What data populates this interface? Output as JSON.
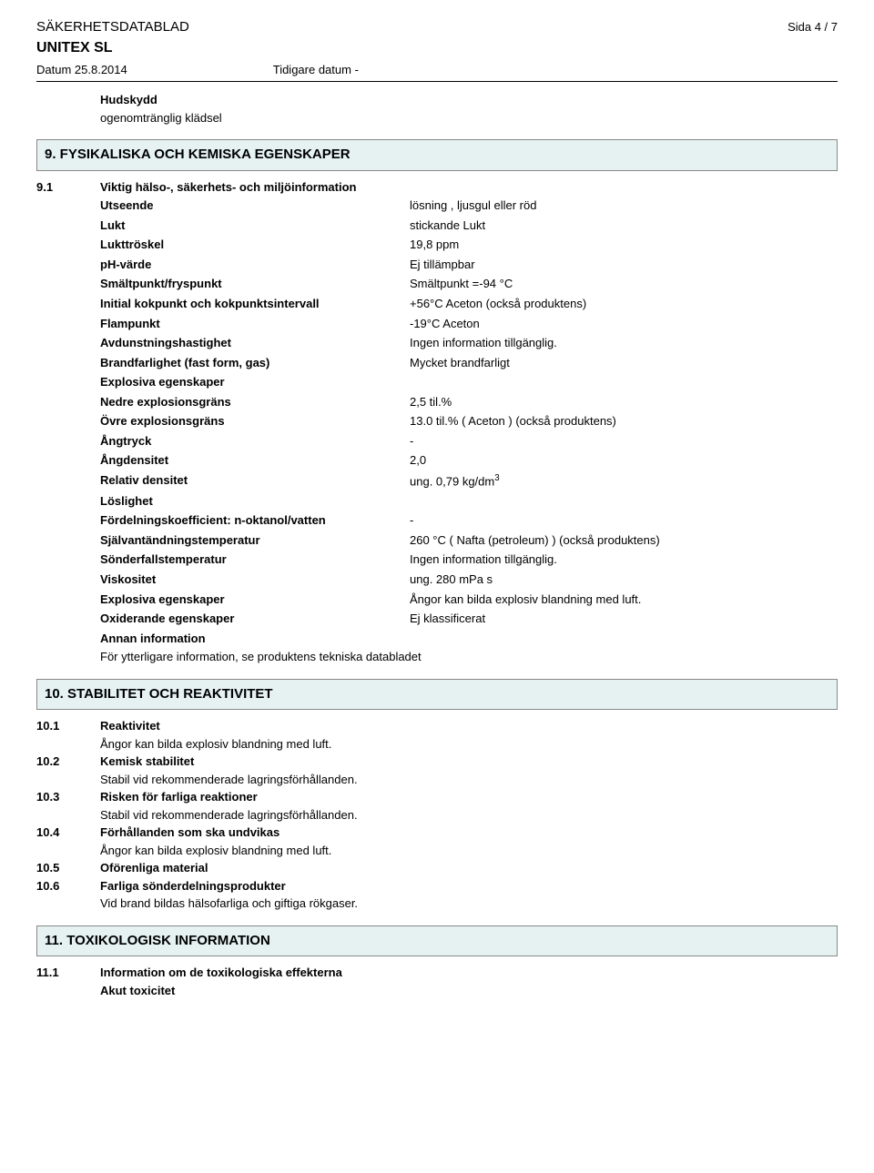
{
  "header": {
    "doc_type": "SÄKERHETSDATABLAD",
    "page_label": "Sida  4 / 7",
    "product": "UNITEX SL",
    "date_label": "Datum 25.8.2014",
    "prev_date_label": "Tidigare datum -"
  },
  "intro": {
    "h1": "Hudskydd",
    "l1": "ogenomtränglig klädsel"
  },
  "section9": {
    "title": "9. FYSIKALISKA OCH KEMISKA EGENSKAPER",
    "sub_num": "9.1",
    "sub_title": "Viktig hälso-, säkerhets- och miljöinformation",
    "props": [
      {
        "k": "Utseende",
        "v": "lösning , ljusgul eller röd"
      },
      {
        "k": "Lukt",
        "v": "stickande  Lukt"
      },
      {
        "k": "Lukttröskel",
        "v": "19,8 ppm"
      },
      {
        "k": "pH-värde",
        "v": "Ej tillämpbar"
      },
      {
        "k": "Smältpunkt/fryspunkt",
        "v": "Smältpunkt    =-94 °C"
      },
      {
        "k": "Initial kokpunkt och kokpunktsintervall",
        "v": "+56°C  Aceton    (också produktens)"
      },
      {
        "k": "Flampunkt",
        "v": "-19°C Aceton"
      },
      {
        "k": "Avdunstningshastighet",
        "v": "Ingen information tillgänglig."
      },
      {
        "k": "Brandfarlighet (fast form, gas)",
        "v": "Mycket brandfarligt"
      }
    ],
    "explosiva_hdr": "Explosiva egenskaper",
    "props2": [
      {
        "k": "Nedre explosionsgräns",
        "v": "2,5 til.%"
      },
      {
        "k": "Övre explosionsgräns",
        "v": "13.0 til.% ( Aceton ) (också produktens)"
      },
      {
        "k": "Ångtryck",
        "v": "-"
      },
      {
        "k": "Ångdensitet",
        "v": "2,0"
      }
    ],
    "rel_dens_k": "Relativ densitet",
    "rel_dens_v_pre": "ung. 0,79 kg/dm",
    "rel_dens_sup": "3",
    "loslighet_hdr": "Löslighet",
    "props3": [
      {
        "k": "Fördelningskoefficient: n-oktanol/vatten",
        "v": "-"
      },
      {
        "k": "Självantändningstemperatur",
        "v": "260 °C ( Nafta (petroleum) ) (också produktens)"
      },
      {
        "k": "Sönderfallstemperatur",
        "v": "Ingen information tillgänglig."
      },
      {
        "k": "Viskositet",
        "v": "ung.  280  mPa s"
      },
      {
        "k": "Explosiva egenskaper",
        "v": "Ångor kan bilda explosiv blandning med luft."
      },
      {
        "k": "Oxiderande egenskaper",
        "v": "Ej klassificerat"
      }
    ],
    "annan_hdr": "Annan information",
    "annan_text": "För ytterligare information, se produktens tekniska databladet"
  },
  "section10": {
    "title": "10. STABILITET OCH REAKTIVITET",
    "items": [
      {
        "n": "10.1",
        "h": "Reaktivitet",
        "t": "Ångor kan bilda explosiv blandning med luft."
      },
      {
        "n": "10.2",
        "h": "Kemisk stabilitet",
        "t": "Stabil vid rekommenderade lagringsförhållanden."
      },
      {
        "n": "10.3",
        "h": "Risken för farliga reaktioner",
        "t": "Stabil vid rekommenderade lagringsförhållanden."
      },
      {
        "n": "10.4",
        "h": "Förhållanden som ska undvikas",
        "t": "Ångor kan bilda explosiv blandning med luft."
      },
      {
        "n": "10.5",
        "h": "Oförenliga material",
        "t": ""
      },
      {
        "n": "10.6",
        "h": "Farliga sönderdelningsprodukter",
        "t": "Vid brand bildas hälsofarliga och giftiga rökgaser."
      }
    ]
  },
  "section11": {
    "title": "11. TOXIKOLOGISK INFORMATION",
    "n": "11.1",
    "h": "Information om de toxikologiska effekterna",
    "sub": "Akut toxicitet"
  },
  "colors": {
    "section_bg": "#e6f2f2",
    "section_border": "#888888",
    "rule": "#000000"
  },
  "typography": {
    "body_font": "Verdana",
    "body_size_pt": 10,
    "header_size_pt": 11,
    "section_size_pt": 11
  }
}
